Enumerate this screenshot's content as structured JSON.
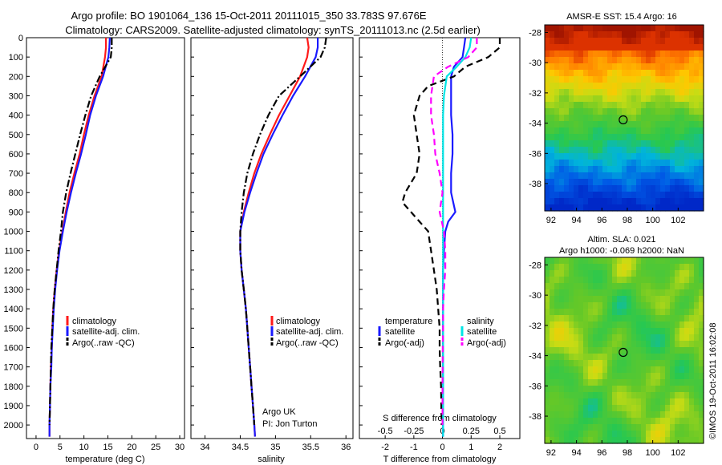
{
  "header": {
    "line1": "Argo profile: BO 1901064_136 15-Oct-2011 20111015_350 33.783S 97.676E",
    "line2": "Climatology: CARS2009. Satellite-adjusted climatology: synTS_20111013.nc (2.5d earlier)"
  },
  "credit": "©IMOS 19-Oct-2011 16:02:08",
  "colors": {
    "climatology": "#ff1a1a",
    "satellite": "#1a1aff",
    "argo": "#000000",
    "sat_salt": "#00e5e5",
    "argo_salt": "#ff00ff"
  },
  "chart_data": [
    {
      "type": "line",
      "id": "temperature",
      "xlabel": "temperature (deg C)",
      "xlim": [
        -2,
        31
      ],
      "ylim": [
        2070,
        0
      ],
      "xticks": [
        "0",
        "5",
        "10",
        "15",
        "20",
        "25",
        "30"
      ],
      "yticks": [
        "0",
        "100",
        "200",
        "300",
        "400",
        "500",
        "600",
        "700",
        "800",
        "900",
        "1000",
        "1100",
        "1200",
        "1300",
        "1400",
        "1500",
        "1600",
        "1700",
        "1800",
        "1900",
        "2000"
      ],
      "legend": [
        "climatology",
        "satellite-adj. clim.",
        "Argo(..raw -QC)"
      ],
      "series": [
        {
          "name": "climatology",
          "style": "solid",
          "color": "#ff1a1a",
          "points": [
            [
              14.6,
              0
            ],
            [
              14.6,
              50
            ],
            [
              14.4,
              100
            ],
            [
              13.7,
              200
            ],
            [
              12.2,
              300
            ],
            [
              11,
              400
            ],
            [
              10,
              500
            ],
            [
              9.1,
              600
            ],
            [
              8,
              700
            ],
            [
              7,
              800
            ],
            [
              6.2,
              900
            ],
            [
              5.5,
              1000
            ],
            [
              4.8,
              1100
            ],
            [
              4.3,
              1200
            ],
            [
              3.9,
              1300
            ],
            [
              3.6,
              1400
            ],
            [
              3.4,
              1500
            ],
            [
              3.3,
              1600
            ],
            [
              3.1,
              1700
            ],
            [
              3,
              1800
            ],
            [
              2.9,
              1900
            ],
            [
              2.8,
              2000
            ],
            [
              2.8,
              2060
            ]
          ]
        },
        {
          "name": "satellite-adj. clim.",
          "style": "solid",
          "color": "#1a1aff",
          "points": [
            [
              15.4,
              0
            ],
            [
              15.3,
              50
            ],
            [
              15.1,
              100
            ],
            [
              14,
              200
            ],
            [
              12.5,
              300
            ],
            [
              11.3,
              400
            ],
            [
              10.4,
              500
            ],
            [
              9.4,
              600
            ],
            [
              8.3,
              700
            ],
            [
              7.3,
              800
            ],
            [
              6.4,
              900
            ],
            [
              5.6,
              1000
            ],
            [
              4.9,
              1100
            ],
            [
              4.4,
              1200
            ],
            [
              4,
              1300
            ],
            [
              3.7,
              1400
            ],
            [
              3.5,
              1500
            ],
            [
              3.3,
              1600
            ],
            [
              3.2,
              1700
            ],
            [
              3,
              1800
            ],
            [
              2.9,
              1900
            ],
            [
              2.8,
              2000
            ],
            [
              2.8,
              2060
            ]
          ]
        },
        {
          "name": "Argo(..raw -QC)",
          "style": "dashdot",
          "color": "#000000",
          "points": [
            [
              15.8,
              0
            ],
            [
              15.8,
              50
            ],
            [
              15.6,
              100
            ],
            [
              13.3,
              200
            ],
            [
              11.5,
              300
            ],
            [
              10.3,
              400
            ],
            [
              9.2,
              500
            ],
            [
              8.2,
              600
            ],
            [
              7.2,
              700
            ],
            [
              6.3,
              800
            ],
            [
              5.6,
              900
            ],
            [
              5.2,
              1000
            ],
            [
              4.7,
              1100
            ],
            [
              4.3,
              1200
            ],
            [
              3.9,
              1300
            ],
            [
              3.6,
              1400
            ],
            [
              3.4,
              1500
            ],
            [
              3.2,
              1600
            ],
            [
              3.1,
              1700
            ],
            [
              3,
              1800
            ],
            [
              2.9,
              1900
            ],
            [
              2.8,
              2000
            ]
          ]
        }
      ]
    },
    {
      "type": "line",
      "id": "salinity",
      "xlabel": "salinity",
      "xlim": [
        33.8,
        36.1
      ],
      "ylim": [
        2070,
        0
      ],
      "xticks": [
        "34",
        "34.5",
        "35",
        "35.5",
        "36"
      ],
      "legend": [
        "climatology",
        "satellite-adj. clim.",
        "Argo(..raw -QC)"
      ],
      "note": [
        "Argo UK",
        "PI: Jon Turton"
      ],
      "series": [
        {
          "name": "climatology",
          "style": "solid",
          "color": "#ff1a1a",
          "points": [
            [
              35.45,
              0
            ],
            [
              35.47,
              50
            ],
            [
              35.45,
              100
            ],
            [
              35.35,
              200
            ],
            [
              35.2,
              300
            ],
            [
              35.05,
              400
            ],
            [
              34.92,
              500
            ],
            [
              34.8,
              600
            ],
            [
              34.7,
              700
            ],
            [
              34.62,
              800
            ],
            [
              34.55,
              900
            ],
            [
              34.5,
              1000
            ],
            [
              34.5,
              1100
            ],
            [
              34.52,
              1200
            ],
            [
              34.55,
              1300
            ],
            [
              34.58,
              1400
            ],
            [
              34.6,
              1500
            ],
            [
              34.62,
              1600
            ],
            [
              34.64,
              1700
            ],
            [
              34.66,
              1800
            ],
            [
              34.68,
              1900
            ],
            [
              34.7,
              2000
            ],
            [
              34.71,
              2060
            ]
          ]
        },
        {
          "name": "satellite-adj. clim.",
          "style": "solid",
          "color": "#1a1aff",
          "points": [
            [
              35.6,
              0
            ],
            [
              35.6,
              50
            ],
            [
              35.57,
              100
            ],
            [
              35.42,
              200
            ],
            [
              35.25,
              300
            ],
            [
              35.1,
              400
            ],
            [
              34.96,
              500
            ],
            [
              34.83,
              600
            ],
            [
              34.73,
              700
            ],
            [
              34.64,
              800
            ],
            [
              34.56,
              900
            ],
            [
              34.5,
              1000
            ],
            [
              34.5,
              1100
            ],
            [
              34.52,
              1200
            ],
            [
              34.55,
              1300
            ],
            [
              34.58,
              1400
            ],
            [
              34.6,
              1500
            ],
            [
              34.62,
              1600
            ],
            [
              34.64,
              1700
            ],
            [
              34.66,
              1800
            ],
            [
              34.68,
              1900
            ],
            [
              34.7,
              2000
            ],
            [
              34.71,
              2060
            ]
          ]
        },
        {
          "name": "Argo(..raw -QC)",
          "style": "dashdot",
          "color": "#000000",
          "points": [
            [
              35.72,
              0
            ],
            [
              35.7,
              50
            ],
            [
              35.64,
              100
            ],
            [
              35.35,
              200
            ],
            [
              35.05,
              300
            ],
            [
              34.9,
              400
            ],
            [
              34.78,
              500
            ],
            [
              34.68,
              600
            ],
            [
              34.6,
              700
            ],
            [
              34.55,
              800
            ],
            [
              34.52,
              900
            ],
            [
              34.5,
              1000
            ],
            [
              34.5,
              1100
            ],
            [
              34.52,
              1200
            ],
            [
              34.55,
              1300
            ],
            [
              34.58,
              1400
            ],
            [
              34.6,
              1500
            ],
            [
              34.62,
              1600
            ],
            [
              34.64,
              1700
            ],
            [
              34.66,
              1800
            ],
            [
              34.68,
              1900
            ],
            [
              34.7,
              2000
            ]
          ]
        }
      ]
    },
    {
      "type": "line",
      "id": "difference",
      "xlabel": "T difference from climatology",
      "toplabel": "S difference from climatology",
      "xlim": [
        -2.9,
        2.7
      ],
      "ylim": [
        2070,
        0
      ],
      "xticks": [
        "-2",
        "-1",
        "0",
        "1",
        "2"
      ],
      "sticks": [
        {
          "label": "-0.5",
          "t": -2
        },
        {
          "label": "-0.25",
          "t": -1
        },
        {
          "label": "0",
          "t": 0
        },
        {
          "label": "0.25",
          "t": 1
        },
        {
          "label": "0.5",
          "t": 2
        }
      ],
      "legend_temperature_title": "temperature",
      "legend_salinity_title": "salinity",
      "legend_temperature": [
        "satellite",
        "Argo(-adj)"
      ],
      "legend_salinity": [
        "satellite",
        "Argo(-adj)"
      ],
      "series": [
        {
          "name": "temperature satellite",
          "style": "solid",
          "color": "#1a1aff",
          "points": [
            [
              0.8,
              0
            ],
            [
              0.75,
              50
            ],
            [
              0.7,
              100
            ],
            [
              0.4,
              150
            ],
            [
              0.3,
              200
            ],
            [
              0.3,
              300
            ],
            [
              0.3,
              400
            ],
            [
              0.35,
              500
            ],
            [
              0.35,
              600
            ],
            [
              0.3,
              700
            ],
            [
              0.3,
              800
            ],
            [
              0.45,
              900
            ],
            [
              0.2,
              950
            ],
            [
              0.1,
              1000
            ],
            [
              0.05,
              1100
            ],
            [
              0.02,
              1200
            ],
            [
              0.02,
              1400
            ],
            [
              0.02,
              1600
            ],
            [
              0.02,
              1800
            ],
            [
              0.02,
              2000
            ],
            [
              0.02,
              2060
            ]
          ]
        },
        {
          "name": "temperature Argo(-adj)",
          "style": "dashed",
          "color": "#000000",
          "points": [
            [
              2,
              0
            ],
            [
              2,
              50
            ],
            [
              1.6,
              100
            ],
            [
              0.8,
              150
            ],
            [
              0.4,
              200
            ],
            [
              -0.5,
              250
            ],
            [
              -0.8,
              300
            ],
            [
              -1,
              400
            ],
            [
              -0.9,
              500
            ],
            [
              -0.8,
              600
            ],
            [
              -0.9,
              700
            ],
            [
              -1.3,
              800
            ],
            [
              -1.4,
              850
            ],
            [
              -1.1,
              900
            ],
            [
              -0.8,
              950
            ],
            [
              -0.5,
              1000
            ],
            [
              -0.4,
              1100
            ],
            [
              -0.3,
              1200
            ],
            [
              -0.2,
              1300
            ],
            [
              -0.15,
              1400
            ],
            [
              -0.1,
              1500
            ],
            [
              -0.1,
              1600
            ],
            [
              -0.08,
              1700
            ],
            [
              -0.05,
              1800
            ],
            [
              -0.04,
              1900
            ],
            [
              -0.03,
              2000
            ]
          ]
        },
        {
          "name": "salinity satellite",
          "style": "solid",
          "color": "#00e5e5",
          "points": [
            [
              1,
              0
            ],
            [
              0.95,
              50
            ],
            [
              0.8,
              100
            ],
            [
              0.5,
              150
            ],
            [
              0.15,
              200
            ],
            [
              0.05,
              300
            ],
            [
              0.02,
              400
            ],
            [
              0.02,
              600
            ],
            [
              0.02,
              800
            ],
            [
              0.02,
              1000
            ],
            [
              0.02,
              1200
            ],
            [
              0.02,
              1400
            ],
            [
              0.02,
              1600
            ],
            [
              0.02,
              1800
            ],
            [
              0.02,
              2000
            ],
            [
              0.02,
              2060
            ]
          ]
        },
        {
          "name": "salinity Argo(-adj)",
          "style": "dashed",
          "color": "#ff00ff",
          "points": [
            [
              1.2,
              0
            ],
            [
              1.2,
              50
            ],
            [
              0.9,
              100
            ],
            [
              0.2,
              150
            ],
            [
              -0.3,
              200
            ],
            [
              -0.4,
              300
            ],
            [
              -0.4,
              400
            ],
            [
              -0.3,
              500
            ],
            [
              -0.25,
              600
            ],
            [
              -0.1,
              700
            ],
            [
              0,
              800
            ],
            [
              -0.1,
              900
            ],
            [
              0.05,
              1000
            ],
            [
              0.1,
              1100
            ],
            [
              0.1,
              1200
            ],
            [
              0.05,
              1300
            ],
            [
              0.02,
              1400
            ],
            [
              0.02,
              1500
            ],
            [
              0.01,
              1600
            ],
            [
              0,
              1800
            ],
            [
              0,
              2000
            ]
          ]
        }
      ]
    },
    {
      "type": "heatmap",
      "id": "sst_map",
      "title": "AMSR-E SST: 15.4 Argo: 16",
      "xticks": [
        "92",
        "94",
        "96",
        "98",
        "100",
        "102"
      ],
      "yticks": [
        "-28",
        "-30",
        "-32",
        "-34",
        "-36",
        "-38"
      ],
      "float_lon": 97.676,
      "float_lat": -33.783
    },
    {
      "type": "heatmap",
      "id": "sla_map",
      "title_lines": [
        "Altim. SLA: 0.021",
        "Argo h1000: -0.069 h2000: NaN"
      ],
      "xticks": [
        "92",
        "94",
        "96",
        "98",
        "100",
        "102"
      ],
      "yticks": [
        "-28",
        "-30",
        "-32",
        "-34",
        "-36",
        "-38"
      ],
      "float_lon": 97.676,
      "float_lat": -33.783
    }
  ]
}
